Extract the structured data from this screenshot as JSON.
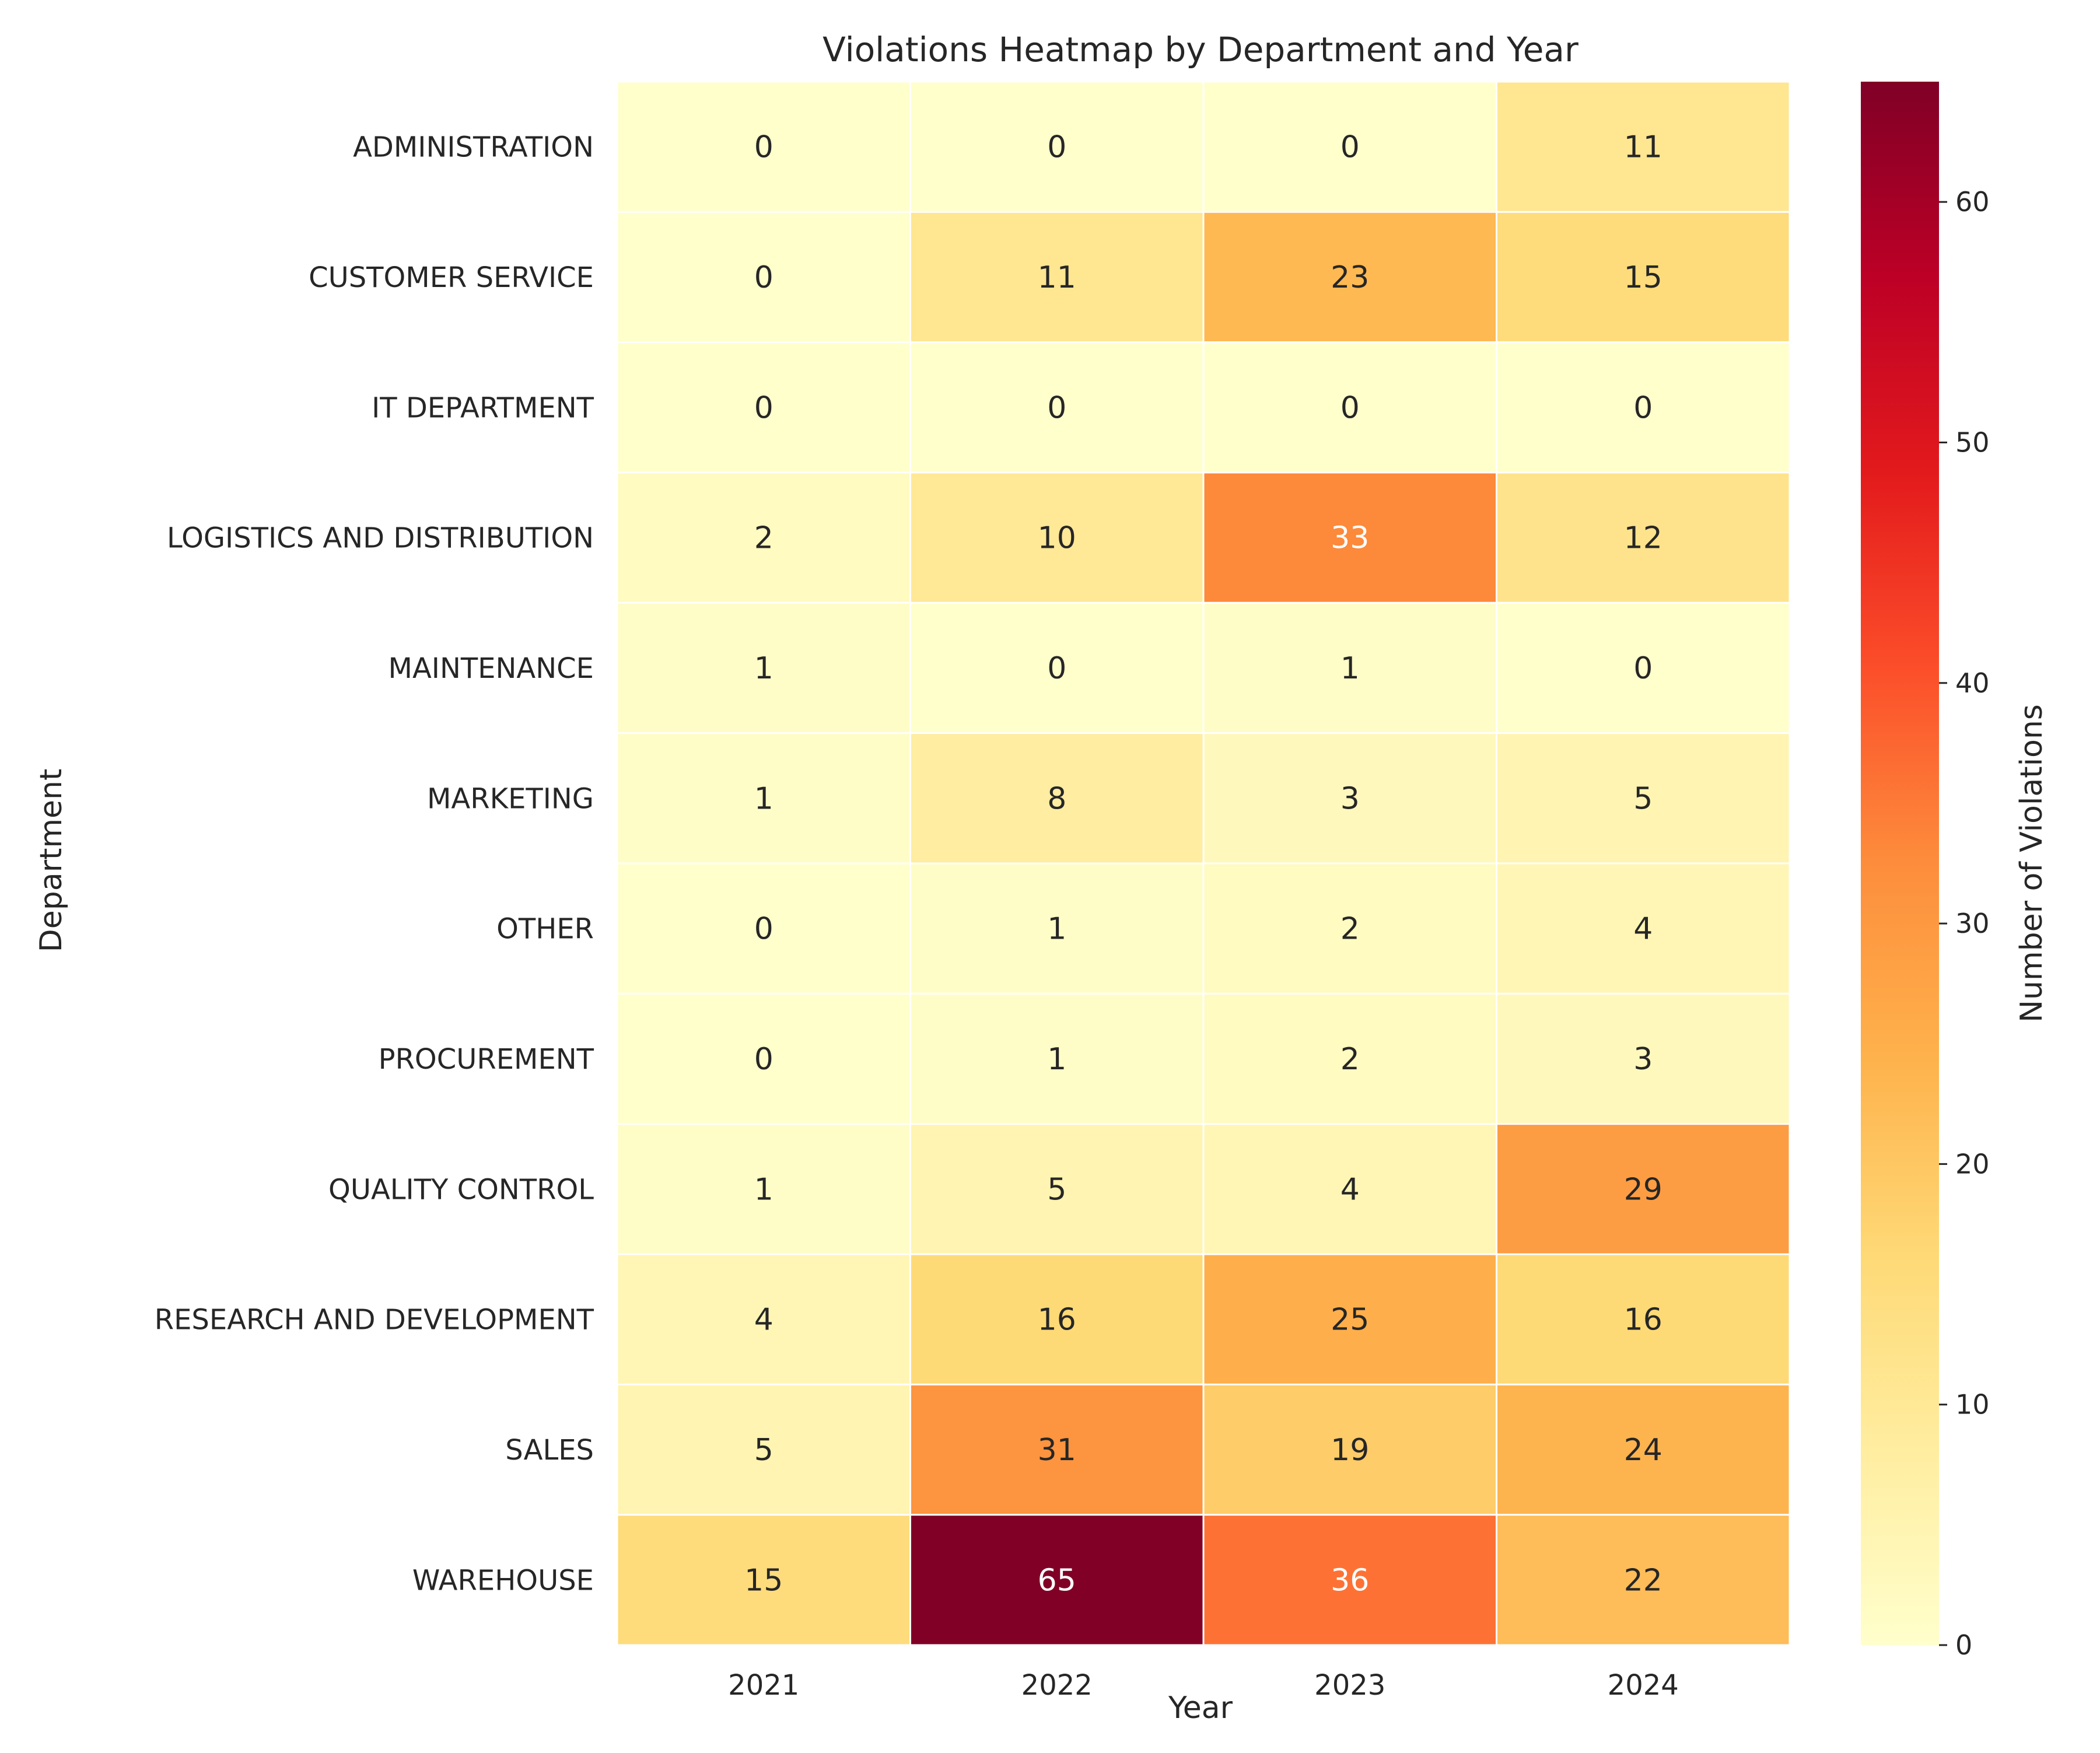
{
  "chart_data": {
    "type": "heatmap",
    "title": "Violations Heatmap by Department and Year",
    "xlabel": "Year",
    "ylabel": "Department",
    "x_categories": [
      "2021",
      "2022",
      "2023",
      "2024"
    ],
    "y_categories": [
      "ADMINISTRATION",
      "CUSTOMER SERVICE",
      "IT DEPARTMENT",
      "LOGISTICS AND DISTRIBUTION",
      "MAINTENANCE",
      "MARKETING",
      "OTHER",
      "PROCUREMENT",
      "QUALITY CONTROL",
      "RESEARCH AND DEVELOPMENT",
      "SALES",
      "WAREHOUSE"
    ],
    "values": [
      [
        0,
        0,
        0,
        11
      ],
      [
        0,
        11,
        23,
        15
      ],
      [
        0,
        0,
        0,
        0
      ],
      [
        2,
        10,
        33,
        12
      ],
      [
        1,
        0,
        1,
        0
      ],
      [
        1,
        8,
        3,
        5
      ],
      [
        0,
        1,
        2,
        4
      ],
      [
        0,
        1,
        2,
        3
      ],
      [
        1,
        5,
        4,
        29
      ],
      [
        4,
        16,
        25,
        16
      ],
      [
        5,
        31,
        19,
        24
      ],
      [
        15,
        65,
        36,
        22
      ]
    ],
    "colorbar": {
      "label": "Number of Violations",
      "range": [
        0,
        65
      ],
      "ticks": [
        0,
        10,
        20,
        30,
        40,
        50,
        60
      ],
      "colormap": "YlOrRd"
    },
    "grid": false
  }
}
